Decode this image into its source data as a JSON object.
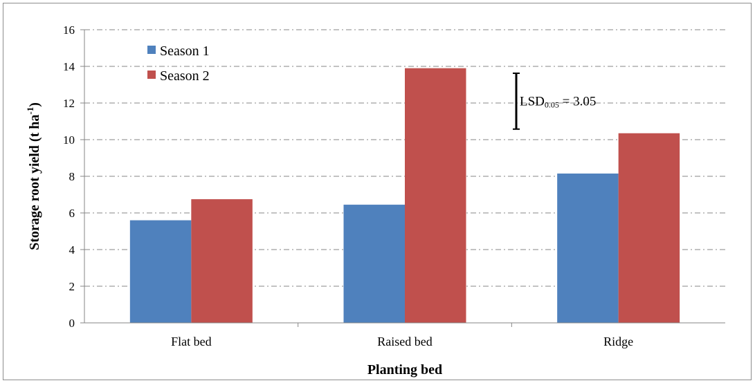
{
  "chart_data": {
    "type": "bar",
    "categories": [
      "Flat bed",
      "Raised bed",
      "Ridge"
    ],
    "series": [
      {
        "name": "Season 1",
        "values": [
          5.6,
          6.45,
          8.15
        ],
        "color": "#4F81BD"
      },
      {
        "name": "Season 2",
        "values": [
          6.75,
          13.9,
          10.35
        ],
        "color": "#C0504D"
      }
    ],
    "xlabel": "Planting bed",
    "ylabel": "Storage root yield (t ha",
    "ylabel_sup": "-1",
    "ylabel_end": ")",
    "ylim": [
      0,
      16
    ],
    "yticks": [
      0,
      2,
      4,
      6,
      8,
      10,
      12,
      14,
      16
    ],
    "grid": true,
    "grid_style": "dash-dot",
    "legend_position": "top-left",
    "annotation": {
      "label": "LSD",
      "subscript": "0.05",
      "text": " = 3.05",
      "value": 3.05,
      "center": 12.1
    }
  }
}
